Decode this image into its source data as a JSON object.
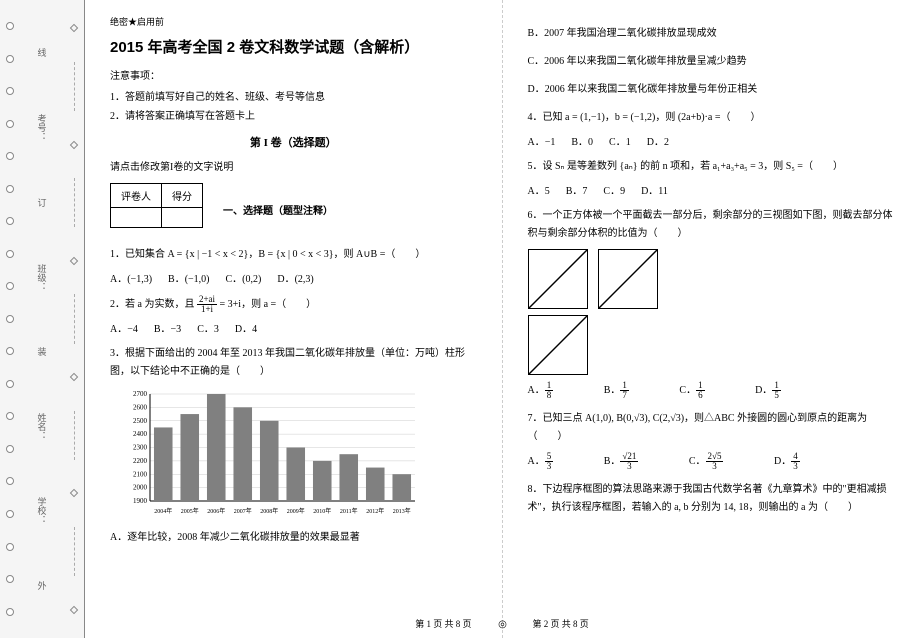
{
  "binding": {
    "labels": [
      "线",
      "考号：",
      "订",
      "班级：",
      "装",
      "姓名：",
      "学校：",
      "外"
    ],
    "dash_labels": [
      "内",
      "线",
      "订",
      "装"
    ]
  },
  "header": {
    "sec_label": "绝密★启用前",
    "title": "2015 年高考全国 2 卷文科数学试题（含解析）",
    "notice_title": "注意事项：",
    "notice_1": "1．答题前填写好自己的姓名、班级、考号等信息",
    "notice_2": "2．请将答案正确填写在答题卡上"
  },
  "section1": {
    "title": "第 I 卷（选择题）",
    "instr": "请点击修改第I卷的文字说明"
  },
  "score_table": {
    "c1": "评卷人",
    "c2": "得分"
  },
  "qtype": "一、选择题（题型注释）",
  "q1": {
    "text": "1．已知集合 A = {x | −1 < x < 2}，B = {x | 0 < x < 3}，则 A∪B =（　　）",
    "a": "A．(−1,3)",
    "b": "B．(−1,0)",
    "c": "C．(0,2)",
    "d": "D．(2,3)"
  },
  "q2": {
    "text_pre": "2．若 a 为实数，且 ",
    "frac_n": "2+ai",
    "frac_d": "1+i",
    "text_post": " = 3+i，则 a =（　　）",
    "a": "A．−4",
    "b": "B．−3",
    "c": "C．3",
    "d": "D．4"
  },
  "q3": {
    "text": "3．根据下面给出的 2004 年至 2013 年我国二氧化碳年排放量（单位：万吨）柱形图，以下结论中不正确的是（　　）"
  },
  "chart": {
    "years": [
      "2004年",
      "2005年",
      "2006年",
      "2007年",
      "2008年",
      "2009年",
      "2010年",
      "2011年",
      "2012年",
      "2013年"
    ],
    "values": [
      2450,
      2550,
      2700,
      2600,
      2500,
      2300,
      2200,
      2250,
      2150,
      2100
    ],
    "y_ticks": [
      1900,
      2000,
      2100,
      2200,
      2300,
      2400,
      2500,
      2600,
      2700
    ],
    "y_min": 1900,
    "y_max": 2700,
    "bar_color": "#808080",
    "grid_color": "#cccccc",
    "axis_color": "#000000",
    "bg_color": "#ffffff",
    "font_size": 7
  },
  "q3_opts": {
    "a": "A．逐年比较，2008 年减少二氧化碳排放量的效果最显著",
    "b": "B．2007 年我国治理二氧化碳排放显现成效",
    "c": "C．2006 年以来我国二氧化碳年排放量呈减少趋势",
    "d": "D．2006 年以来我国二氧化碳年排放量与年份正相关"
  },
  "q4": {
    "text": "4．已知 a = (1,−1)，b = (−1,2)，则 (2a+b)·a =（　　）",
    "a": "A．−1",
    "b": "B．0",
    "c": "C．1",
    "d": "D．2"
  },
  "q5": {
    "text": "5．设 Sₙ 是等差数列 {aₙ} 的前 n 项和，若 a₁+a₃+a₅ = 3，则 S₅ =（　　）",
    "a": "A．5",
    "b": "B．7",
    "c": "C．9",
    "d": "D．11"
  },
  "q6": {
    "text": "6．一个正方体被一个平面截去一部分后，剩余部分的三视图如下图，则截去部分体积与剩余部分体积的比值为（　　）",
    "a_n": "1",
    "a_d": "8",
    "b_n": "1",
    "b_d": "7",
    "c_n": "1",
    "c_d": "6",
    "d_n": "1",
    "d_d": "5"
  },
  "q7": {
    "text": "7．已知三点 A(1,0), B(0,√3), C(2,√3)，则△ABC 外接圆的圆心到原点的距离为（　　）",
    "a_n": "5",
    "a_d": "3",
    "b_n": "√21",
    "b_d": "3",
    "c_n": "2√5",
    "c_d": "3",
    "d_n": "4",
    "d_d": "3"
  },
  "q8": {
    "text": "8．下边程序框图的算法思路来源于我国古代数学名著《九章算术》中的\"更相减损术\"，执行该程序框图，若输入的 a, b 分别为 14, 18，则输出的 a 为（　　）"
  },
  "footer": {
    "left": "第 1 页  共 8 页",
    "mid": "◎",
    "right": "第 2 页  共 8 页"
  }
}
